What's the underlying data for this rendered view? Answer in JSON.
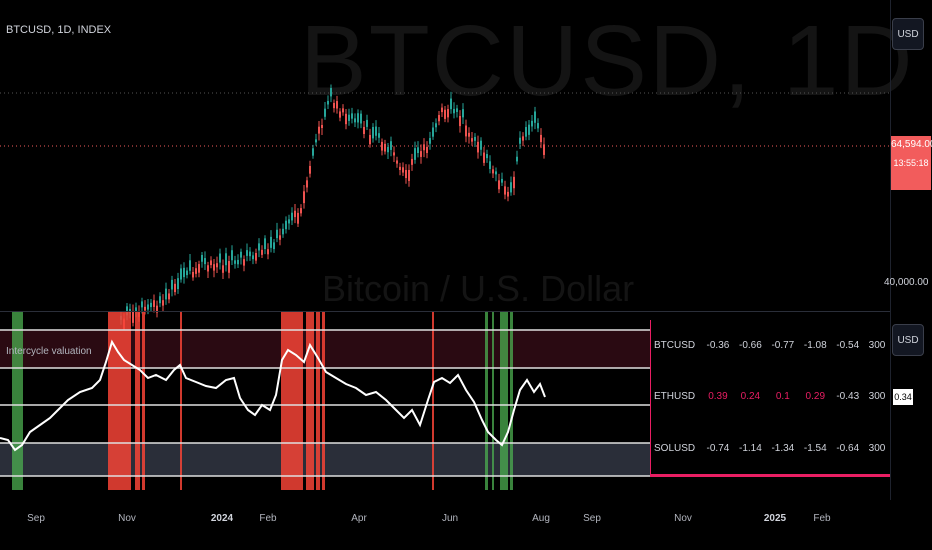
{
  "symbol_label": "BTCUSD, 1D, INDEX",
  "watermark": "BTCUSD, 1D",
  "watermark_sub": "Bitcoin / U.S. Dollar",
  "currency_top": "USD",
  "currency_bottom": "USD",
  "price_tag": {
    "price": "64,594.00",
    "countdown": "13:55:18",
    "color": "#f25c5c"
  },
  "price_axis_label": "40,000.00",
  "indicator": {
    "title": "Intercycle valuation",
    "value": "0.34"
  },
  "colors": {
    "up": "#26a69a",
    "down": "#ef5350",
    "overvalued_zone": "#2a0a12",
    "undervalued_zone": "#2a2e39",
    "red_bar": "#f44336",
    "green_bar": "#4caf50",
    "accent": "#e91e63"
  },
  "x_axis": [
    "Sep",
    "Nov",
    "2024",
    "Feb",
    "Apr",
    "Jun",
    "Aug",
    "Sep",
    "Nov",
    "2025",
    "Feb"
  ],
  "valuation_table": [
    {
      "symbol": "BTCUSD",
      "values": [
        "-0.36",
        "-0.66",
        "-0.77",
        "-1.08",
        "-0.54",
        "300"
      ]
    },
    {
      "symbol": "ETHUSD",
      "values": [
        "0.39",
        "0.24",
        "0.1",
        "0.29",
        "-0.43",
        "300"
      ],
      "highlight": [
        0,
        1,
        2,
        3
      ]
    },
    {
      "symbol": "SOLUSD",
      "values": [
        "-0.74",
        "-1.14",
        "-1.34",
        "-1.54",
        "-0.64",
        "300"
      ]
    }
  ]
}
